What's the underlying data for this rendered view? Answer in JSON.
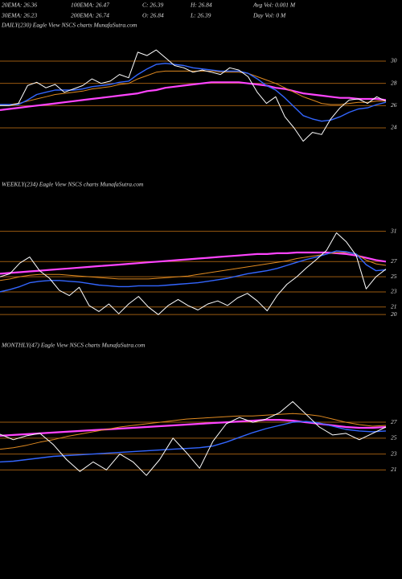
{
  "header": {
    "row1": [
      "20EMA: 26.36",
      "100EMA: 26.47",
      "C: 26.39",
      "H: 26.84",
      "Avg Vol: 0.001  M"
    ],
    "row2": [
      "30EMA: 26.23",
      "200EMA: 26.74",
      "O: 26.84",
      "L: 26.39",
      "Day Vol: 0  M"
    ]
  },
  "chart_data": [
    {
      "type": "line",
      "title": "DAILY(230) Eagle  View  NSCS charts MunafaSutra.com",
      "ylim": [
        21.4,
        32.6
      ],
      "yticks": [
        30,
        28,
        26,
        24
      ],
      "grid": true,
      "grid_color": "#9a5a10",
      "series": [
        {
          "color": "#ff44ff",
          "width": 2.2,
          "values": [
            25.6,
            25.7,
            25.8,
            25.9,
            26.0,
            26.1,
            26.2,
            26.3,
            26.4,
            26.5,
            26.6,
            26.7,
            26.8,
            26.9,
            27.0,
            27.1,
            27.3,
            27.4,
            27.6,
            27.7,
            27.8,
            27.9,
            28.0,
            28.1,
            28.1,
            28.1,
            28.1,
            28.0,
            27.9,
            27.8,
            27.6,
            27.5,
            27.3,
            27.1,
            27.0,
            26.9,
            26.8,
            26.7,
            26.7,
            26.6,
            26.6,
            26.6,
            26.5
          ]
        },
        {
          "color": "#e08a20",
          "width": 1,
          "values": [
            26,
            26.1,
            26.2,
            26.4,
            26.6,
            26.8,
            27,
            27.1,
            27.2,
            27.3,
            27.5,
            27.6,
            27.7,
            27.9,
            28,
            28.4,
            28.7,
            29,
            29.1,
            29.1,
            29.1,
            29.1,
            29.1,
            29.1,
            29.0,
            29.0,
            29.0,
            28.9,
            28.6,
            28.3,
            28.0,
            27.6,
            27.2,
            26.8,
            26.5,
            26.2,
            26.1,
            26.1,
            26.2,
            26.3,
            26.3,
            26.4,
            26.4
          ]
        },
        {
          "color": "#3366ff",
          "width": 1.4,
          "values": [
            26.1,
            26.1,
            26.1,
            26.5,
            27,
            27.2,
            27.4,
            27.4,
            27.4,
            27.5,
            27.7,
            27.8,
            27.9,
            28.1,
            28.2,
            28.8,
            29.3,
            29.7,
            29.8,
            29.7,
            29.6,
            29.4,
            29.3,
            29.2,
            29.1,
            29.1,
            29.1,
            28.9,
            28.4,
            27.8,
            27.4,
            26.7,
            25.9,
            25.1,
            24.8,
            24.6,
            24.7,
            25,
            25.4,
            25.7,
            25.8,
            26.1,
            26.3
          ]
        },
        {
          "color": "#ffffff",
          "width": 1,
          "values": [
            26,
            26,
            26.2,
            27.8,
            28.1,
            27.6,
            27.9,
            27.2,
            27.5,
            27.8,
            28.4,
            28.0,
            28.2,
            28.8,
            28.5,
            30.8,
            30.5,
            31.0,
            30.3,
            29.6,
            29.4,
            29.0,
            29.2,
            29.0,
            28.8,
            29.4,
            29.2,
            28.6,
            27.2,
            26.2,
            26.8,
            25.0,
            24.0,
            22.8,
            23.6,
            23.4,
            24.8,
            25.8,
            26.5,
            26.6,
            26.2,
            26.8,
            26.4
          ]
        }
      ]
    },
    {
      "type": "line",
      "title": "WEEKLY(234) Eagle  View  NSCS charts MunafaSutra.com",
      "ylim": [
        18,
        35
      ],
      "yticks": [
        31,
        27,
        25,
        23,
        21,
        20
      ],
      "grid": true,
      "grid_color": "#9a5a10",
      "series": [
        {
          "color": "#ff44ff",
          "width": 2.2,
          "values": [
            25.4,
            25.5,
            25.6,
            25.7,
            25.8,
            25.9,
            26.0,
            26.1,
            26.2,
            26.3,
            26.4,
            26.5,
            26.6,
            26.7,
            26.8,
            26.9,
            27.0,
            27.1,
            27.2,
            27.3,
            27.4,
            27.5,
            27.6,
            27.7,
            27.8,
            27.9,
            28.0,
            28.0,
            28.1,
            28.1,
            28.2,
            28.2,
            28.2,
            28.2,
            28.1,
            28.0,
            27.8,
            27.5,
            27.2,
            27.0
          ]
        },
        {
          "color": "#e08a20",
          "width": 1,
          "values": [
            24.5,
            24.7,
            25.0,
            25.2,
            25.3,
            25.3,
            25.3,
            25.2,
            25.1,
            25.0,
            24.9,
            24.8,
            24.7,
            24.7,
            24.7,
            24.7,
            24.8,
            24.9,
            25.0,
            25.1,
            25.3,
            25.5,
            25.7,
            25.9,
            26.1,
            26.3,
            26.5,
            26.7,
            26.9,
            27.1,
            27.4,
            27.6,
            27.8,
            28.0,
            28.2,
            28.2,
            28.0,
            27.2,
            26.7,
            26.5
          ]
        },
        {
          "color": "#3366ff",
          "width": 1.4,
          "values": [
            23.0,
            23.3,
            23.7,
            24.2,
            24.4,
            24.5,
            24.5,
            24.4,
            24.3,
            24.1,
            23.9,
            23.8,
            23.7,
            23.7,
            23.8,
            23.8,
            23.8,
            23.9,
            24.0,
            24.1,
            24.2,
            24.4,
            24.6,
            24.8,
            25.1,
            25.4,
            25.6,
            25.8,
            26.1,
            26.5,
            26.9,
            27.3,
            27.6,
            28.0,
            28.4,
            28.3,
            28.0,
            26.6,
            25.8,
            25.9
          ]
        },
        {
          "color": "#ffffff",
          "width": 1,
          "values": [
            25,
            25.4,
            26.8,
            27.6,
            25.8,
            24.8,
            23.2,
            22.5,
            23.6,
            21.2,
            20.4,
            21.4,
            20.1,
            21.4,
            22.4,
            21.0,
            20.0,
            21.2,
            22.0,
            21.2,
            20.6,
            21.4,
            21.8,
            21.2,
            22.2,
            22.8,
            21.8,
            20.5,
            22.5,
            24.0,
            25.0,
            26.2,
            27.3,
            28.5,
            30.8,
            29.6,
            27.8,
            23.4,
            25.0,
            26.0
          ]
        }
      ]
    },
    {
      "type": "line",
      "title": "MONTHLY(47) Eagle  View  NSCS charts MunafaSutra.com",
      "ylim": [
        18.4,
        34.6
      ],
      "yticks": [
        27,
        25,
        23,
        21
      ],
      "grid": true,
      "grid_color": "#9a5a10",
      "series": [
        {
          "color": "#ff44ff",
          "width": 2.2,
          "values": [
            25.3,
            25.4,
            25.5,
            25.6,
            25.7,
            25.8,
            25.9,
            26.0,
            26.1,
            26.2,
            26.3,
            26.4,
            26.5,
            26.6,
            26.7,
            26.8,
            26.9,
            27.0,
            27.1,
            27.2,
            27.3,
            27.3,
            27.2,
            27.0,
            26.8,
            26.6,
            26.4,
            26.3,
            26.3,
            26.4
          ]
        },
        {
          "color": "#e08a20",
          "width": 1,
          "values": [
            23.6,
            23.8,
            24.1,
            24.5,
            24.8,
            25.2,
            25.5,
            25.8,
            26.1,
            26.4,
            26.6,
            26.8,
            27.0,
            27.2,
            27.4,
            27.5,
            27.6,
            27.7,
            27.8,
            27.8,
            27.9,
            28.0,
            28.1,
            28.0,
            27.8,
            27.4,
            27.0,
            26.7,
            26.5,
            26.6
          ]
        },
        {
          "color": "#3366ff",
          "width": 1.4,
          "values": [
            22.0,
            22.1,
            22.3,
            22.5,
            22.7,
            22.8,
            22.9,
            23.0,
            23.1,
            23.2,
            23.3,
            23.4,
            23.5,
            23.6,
            23.7,
            23.8,
            24.0,
            24.5,
            25.1,
            25.7,
            26.2,
            26.6,
            27.0,
            27.1,
            26.9,
            26.5,
            26.1,
            25.9,
            25.8,
            25.9
          ]
        },
        {
          "color": "#ffffff",
          "width": 1,
          "values": [
            25.5,
            24.8,
            25.3,
            25.6,
            24.2,
            22.3,
            20.8,
            22.0,
            21.0,
            23.0,
            22.0,
            20.3,
            22.3,
            25.0,
            23.2,
            21.2,
            24.6,
            26.8,
            27.6,
            27.0,
            27.4,
            28.2,
            29.6,
            28.0,
            26.4,
            25.4,
            25.6,
            24.8,
            25.6,
            26.4
          ]
        }
      ]
    }
  ]
}
